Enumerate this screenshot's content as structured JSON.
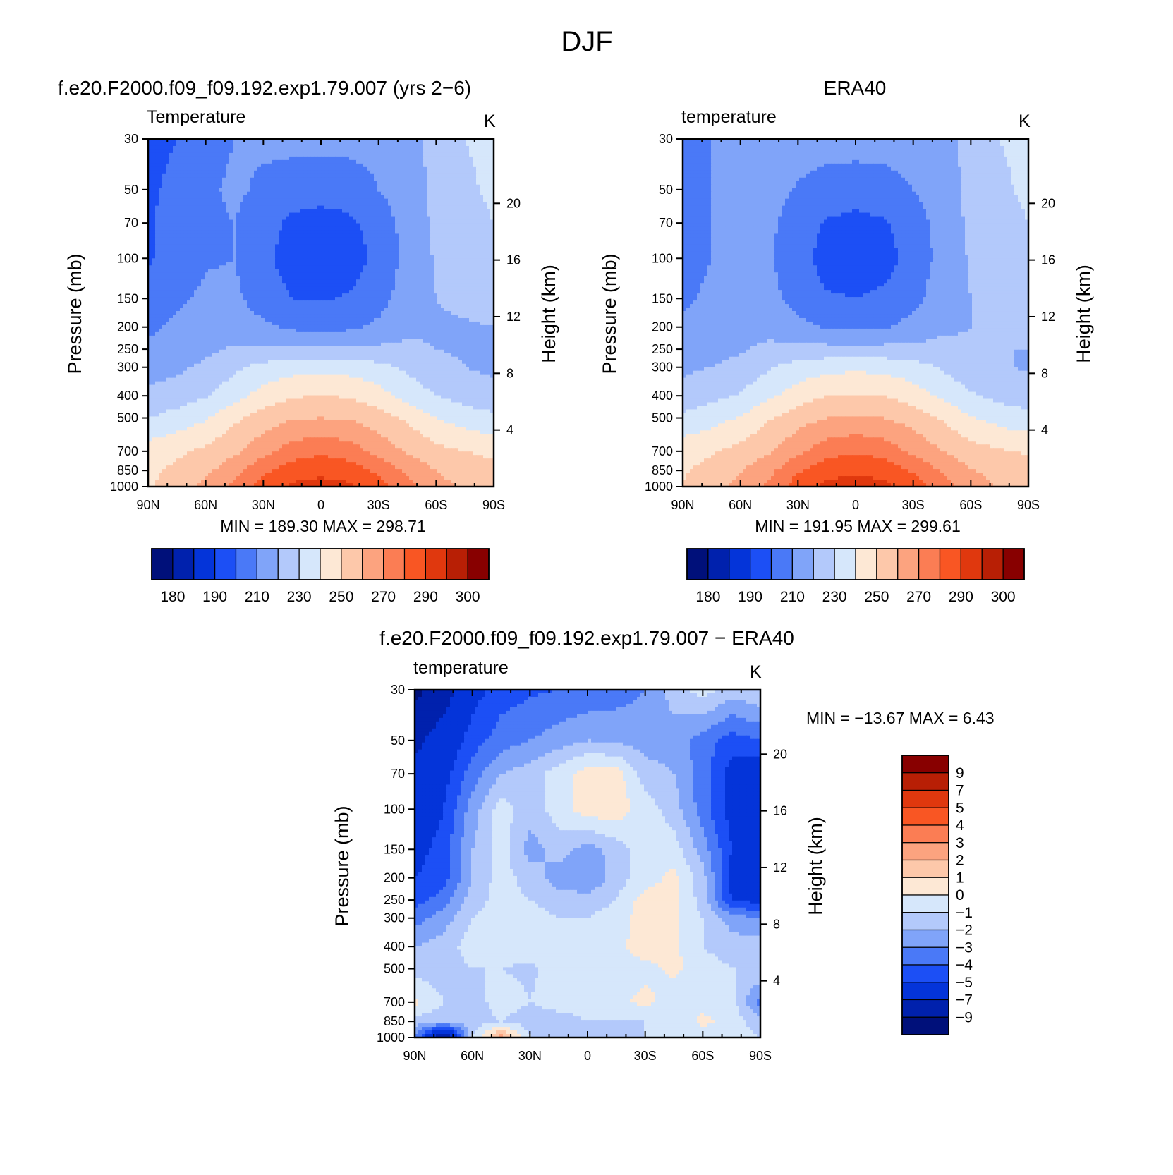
{
  "figure_title": "DJF",
  "chart_data": [
    {
      "id": "model",
      "type": "heatmap",
      "case_title": "f.e20.F2000.f09_f09.192.exp1.79.007 (yrs 2−6)",
      "field_label": "Temperature",
      "units": "K",
      "ylabel": "Pressure (mb)",
      "ylabel_right": "Height (km)",
      "x_ticks": [
        "90N",
        "60N",
        "30N",
        "0",
        "30S",
        "60S",
        "90S"
      ],
      "y_ticks": [
        "30",
        "50",
        "70",
        "100",
        "150",
        "200",
        "250",
        "300",
        "400",
        "500",
        "700",
        "850",
        "1000"
      ],
      "y_ticks_right": [
        "20",
        "16",
        "12",
        "8",
        "4"
      ],
      "min_max_text": "MIN = 189.30 MAX = 298.71",
      "colorbar_labels": [
        "180",
        "190",
        "210",
        "230",
        "250",
        "270",
        "290",
        "300"
      ],
      "colorbar_levels": [
        180,
        185,
        190,
        200,
        210,
        220,
        230,
        240,
        250,
        260,
        270,
        280,
        290,
        295,
        300
      ],
      "grid_lat": [
        90,
        75,
        60,
        45,
        30,
        15,
        0,
        -15,
        -30,
        -45,
        -60,
        -75,
        -90
      ],
      "grid_p": [
        30,
        50,
        70,
        100,
        150,
        200,
        250,
        300,
        400,
        500,
        700,
        850,
        1000
      ],
      "values": [
        [
          196,
          200,
          206,
          210,
          212,
          213,
          213,
          213,
          213,
          218,
          222,
          230,
          233
        ],
        [
          198,
          203,
          208,
          212,
          208,
          205,
          204,
          205,
          210,
          216,
          222,
          228,
          232
        ],
        [
          199,
          204,
          208,
          210,
          204,
          198,
          196,
          198,
          204,
          214,
          222,
          226,
          230
        ],
        [
          199,
          204,
          209,
          210,
          203,
          195,
          194,
          195,
          203,
          213,
          221,
          225,
          228
        ],
        [
          204,
          208,
          212,
          212,
          205,
          200,
          199,
          201,
          206,
          215,
          220,
          222,
          224
        ],
        [
          208,
          212,
          216,
          216,
          212,
          208,
          207,
          208,
          212,
          218,
          219,
          219,
          220
        ],
        [
          212,
          214,
          218,
          221,
          222,
          222,
          222,
          222,
          222,
          222,
          220,
          219,
          219
        ],
        [
          216,
          218,
          222,
          228,
          233,
          236,
          237,
          236,
          233,
          228,
          223,
          220,
          218
        ],
        [
          222,
          225,
          229,
          236,
          244,
          249,
          250,
          249,
          244,
          236,
          230,
          226,
          224
        ],
        [
          230,
          234,
          239,
          248,
          255,
          259,
          260,
          259,
          255,
          248,
          240,
          235,
          232
        ],
        [
          245,
          248,
          252,
          258,
          266,
          275,
          278,
          275,
          266,
          259,
          253,
          250,
          248
        ],
        [
          248,
          252,
          258,
          266,
          278,
          285,
          287,
          285,
          278,
          268,
          260,
          255,
          252
        ],
        [
          249,
          255,
          262,
          272,
          284,
          292,
          294,
          292,
          284,
          274,
          264,
          258,
          256
        ]
      ]
    },
    {
      "id": "obs",
      "type": "heatmap",
      "case_title": "ERA40",
      "field_label": "temperature",
      "units": "K",
      "ylabel": "Pressure (mb)",
      "ylabel_right": "Height (km)",
      "x_ticks": [
        "90N",
        "60N",
        "30N",
        "0",
        "30S",
        "60S",
        "90S"
      ],
      "y_ticks": [
        "30",
        "50",
        "70",
        "100",
        "150",
        "200",
        "250",
        "300",
        "400",
        "500",
        "700",
        "850",
        "1000"
      ],
      "y_ticks_right": [
        "20",
        "16",
        "12",
        "8",
        "4"
      ],
      "min_max_text": "MIN = 191.95 MAX = 299.61",
      "colorbar_labels": [
        "180",
        "190",
        "210",
        "230",
        "250",
        "270",
        "290",
        "300"
      ],
      "colorbar_levels": [
        180,
        185,
        190,
        200,
        210,
        220,
        230,
        240,
        250,
        260,
        270,
        280,
        290,
        295,
        300
      ],
      "grid_lat": [
        90,
        75,
        60,
        45,
        30,
        15,
        0,
        -15,
        -30,
        -45,
        -60,
        -75,
        -90
      ],
      "grid_p": [
        30,
        50,
        70,
        100,
        150,
        200,
        250,
        300,
        400,
        500,
        700,
        850,
        1000
      ],
      "values": [
        [
          205,
          210,
          214,
          215,
          215,
          214,
          214,
          214,
          215,
          218,
          222,
          230,
          233
        ],
        [
          206,
          210,
          214,
          214,
          209,
          206,
          205,
          206,
          210,
          216,
          222,
          228,
          232
        ],
        [
          206,
          210,
          213,
          212,
          205,
          199,
          197,
          199,
          205,
          214,
          222,
          226,
          230
        ],
        [
          206,
          210,
          213,
          211,
          204,
          196,
          195,
          196,
          204,
          213,
          221,
          225,
          228
        ],
        [
          208,
          212,
          215,
          213,
          206,
          201,
          200,
          202,
          207,
          215,
          220,
          222,
          224
        ],
        [
          212,
          215,
          218,
          217,
          213,
          209,
          208,
          209,
          213,
          218,
          220,
          220,
          220
        ],
        [
          214,
          216,
          219,
          222,
          223,
          223,
          223,
          223,
          223,
          223,
          221,
          220,
          220
        ],
        [
          218,
          220,
          223,
          229,
          234,
          237,
          238,
          237,
          234,
          229,
          224,
          221,
          219
        ],
        [
          224,
          227,
          231,
          238,
          245,
          250,
          251,
          250,
          245,
          238,
          231,
          227,
          225
        ],
        [
          232,
          236,
          241,
          249,
          256,
          260,
          261,
          260,
          256,
          249,
          241,
          236,
          233
        ],
        [
          246,
          249,
          253,
          259,
          267,
          276,
          279,
          276,
          267,
          260,
          254,
          251,
          249
        ],
        [
          249,
          253,
          259,
          267,
          279,
          286,
          288,
          286,
          279,
          269,
          261,
          256,
          253
        ],
        [
          250,
          256,
          263,
          273,
          285,
          293,
          296,
          293,
          285,
          275,
          265,
          259,
          257
        ]
      ]
    },
    {
      "id": "diff",
      "type": "heatmap",
      "case_title": "f.e20.F2000.f09_f09.192.exp1.79.007 − ERA40",
      "field_label": "temperature",
      "units": "K",
      "ylabel": "Pressure (mb)",
      "ylabel_right": "Height (km)",
      "x_ticks": [
        "90N",
        "60N",
        "30N",
        "0",
        "30S",
        "60S",
        "90S"
      ],
      "y_ticks": [
        "30",
        "50",
        "70",
        "100",
        "150",
        "200",
        "250",
        "300",
        "400",
        "500",
        "700",
        "850",
        "1000"
      ],
      "y_ticks_right": [
        "20",
        "16",
        "12",
        "8",
        "4"
      ],
      "min_max_text": "MIN = −13.67 MAX = 6.43",
      "colorbar_labels": [
        "9",
        "7",
        "5",
        "4",
        "3",
        "2",
        "1",
        "0",
        "−1",
        "−2",
        "−3",
        "−4",
        "−5",
        "−7",
        "−9"
      ],
      "colorbar_levels": [
        -9,
        -7,
        -5,
        -4,
        -3,
        -2,
        -1,
        0,
        1,
        2,
        3,
        4,
        5,
        7,
        9
      ],
      "grid_lat": [
        90,
        75,
        60,
        45,
        30,
        15,
        0,
        -15,
        -30,
        -45,
        -60,
        -75,
        -90
      ],
      "grid_p": [
        30,
        50,
        70,
        100,
        150,
        200,
        250,
        300,
        400,
        500,
        700,
        850,
        1000
      ],
      "values": [
        [
          -9.5,
          -8.0,
          -5.5,
          -4.5,
          -4.2,
          -4.0,
          -3.8,
          -3.5,
          -3.0,
          -1.5,
          -0.5,
          -1.5,
          -1.0
        ],
        [
          -7.5,
          -6.0,
          -4.5,
          -3.5,
          -3.0,
          -2.5,
          -2.0,
          -2.2,
          -2.5,
          -2.5,
          -3.5,
          -4.5,
          -4.0
        ],
        [
          -6.5,
          -5.5,
          -3.5,
          -2.0,
          -1.5,
          -0.5,
          0.5,
          0.5,
          -1.5,
          -2.0,
          -3.5,
          -5.5,
          -6.0
        ],
        [
          -6.5,
          -5.0,
          -2.5,
          -0.5,
          -1.5,
          -0.5,
          0.6,
          0.6,
          -0.5,
          -1.5,
          -3.5,
          -5.5,
          -6.5
        ],
        [
          -5.5,
          -4.5,
          -2.0,
          -0.5,
          -2.5,
          -1.5,
          -2.5,
          -1.5,
          -0.5,
          -0.5,
          -2.5,
          -5.0,
          -6.0
        ],
        [
          -5.0,
          -4.5,
          -2.0,
          -0.5,
          -1.5,
          -2.5,
          -3.0,
          -1.5,
          -0.5,
          0.3,
          -1.5,
          -5.5,
          -6.0
        ],
        [
          -4.5,
          -3.5,
          -1.5,
          -0.5,
          -1.0,
          -1.5,
          -1.5,
          -1.0,
          0.5,
          0.4,
          -1.5,
          -5.0,
          -5.5
        ],
        [
          -3.5,
          -2.5,
          -1.0,
          -0.5,
          -0.5,
          -1.0,
          -1.0,
          -0.5,
          0.5,
          0.3,
          -1.0,
          -2.5,
          -3.0
        ],
        [
          -2.0,
          -1.5,
          -0.5,
          -0.5,
          -0.5,
          -0.5,
          -0.5,
          -0.3,
          0.5,
          0.3,
          -1.0,
          -1.5,
          -1.5
        ],
        [
          -1.5,
          -1.5,
          -1.0,
          -1.0,
          -1.2,
          -0.5,
          -0.4,
          -0.4,
          -0.3,
          0.2,
          -0.5,
          -1.0,
          -1.0
        ],
        [
          0.3,
          -1.0,
          -1.5,
          -0.5,
          -1.0,
          -0.5,
          -0.5,
          -0.3,
          0.3,
          -0.5,
          -0.5,
          -0.5,
          -3.5
        ],
        [
          -1.5,
          -1.5,
          -1.5,
          -1.0,
          -1.5,
          -1.5,
          -1.0,
          -1.0,
          -1.0,
          -1.0,
          0.3,
          -0.5,
          -1.5
        ],
        [
          -3.0,
          -9.5,
          -1.0,
          2.5,
          -1.0,
          -1.5,
          -1.0,
          -1.5,
          -1.0,
          -1.0,
          -0.5,
          -0.5,
          -1.0
        ]
      ]
    }
  ],
  "colors": {
    "temp_palette": [
      "#00107a",
      "#0021ad",
      "#0434d9",
      "#1c4ff5",
      "#4a79f7",
      "#80a4f9",
      "#b3c9fb",
      "#d6e7fb",
      "#fde8d5",
      "#fdc8aa",
      "#fca37f",
      "#fb7d54",
      "#f95623",
      "#e0380e",
      "#b81f05",
      "#880000"
    ],
    "diff_palette": [
      "#880000",
      "#b81f05",
      "#e0380e",
      "#f95623",
      "#fb7d54",
      "#fca37f",
      "#fdc8aa",
      "#fde8d5",
      "#d6e7fb",
      "#b3c9fb",
      "#80a4f9",
      "#4a79f7",
      "#1c4ff5",
      "#0434d9",
      "#0021ad",
      "#00107a"
    ]
  }
}
